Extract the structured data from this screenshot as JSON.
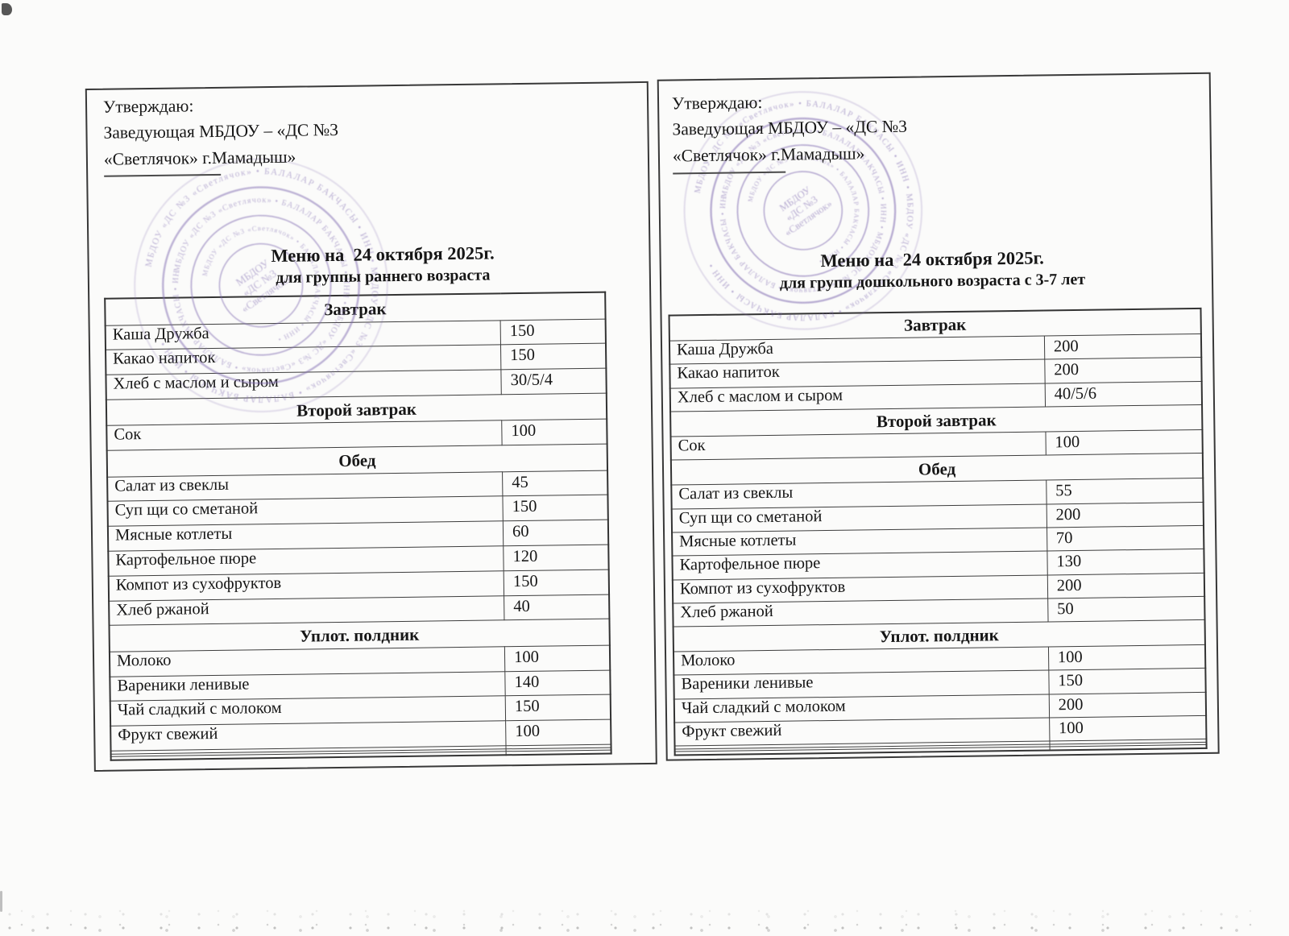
{
  "colors": {
    "stamp_ink": "#7f6ab0",
    "paper": "#fbfbfa",
    "table_line": "#3d3d3d"
  },
  "document": {
    "stamp": {
      "ring_text": "МБДОУ «ДС №3 «Светлячок» • БАЛАЛАР БАКЧАСЫ • ИНН • ",
      "center_lines": [
        "МБДОУ",
        "«ДС №3",
        "«Светлячок»"
      ]
    },
    "menus": [
      {
        "approval_lines": [
          "Утверждаю:",
          "Заведующая МБДОУ – «ДС №3",
          "«Светлячок» г.Мамадыш»"
        ],
        "title": "Меню на  24 октября 2025г.",
        "subtitle": "для группы раннего возраста",
        "sections": [
          {
            "header": "Завтрак",
            "items": [
              {
                "name": "Каша Дружба",
                "qty": "150"
              },
              {
                "name": "Какао напиток",
                "qty": "150"
              },
              {
                "name": "Хлеб с маслом и сыром",
                "qty": "30/5/4"
              }
            ]
          },
          {
            "header": "Второй завтрак",
            "items": [
              {
                "name": "Сок",
                "qty": "100"
              }
            ]
          },
          {
            "header": "Обед",
            "items": [
              {
                "name": "Салат из свеклы",
                "qty": "45"
              },
              {
                "name": "Суп щи со сметаной",
                "qty": "150"
              },
              {
                "name": "Мясные котлеты",
                "qty": "60"
              },
              {
                "name": "Картофельное пюре",
                "qty": "120"
              },
              {
                "name": "Компот из сухофруктов",
                "qty": "150"
              },
              {
                "name": "Хлеб ржаной",
                "qty": "40"
              }
            ]
          },
          {
            "header": "Уплот. полдник",
            "items": [
              {
                "name": "Молоко",
                "qty": "100"
              },
              {
                "name": "Вареники ленивые",
                "qty": "140"
              },
              {
                "name": "Чай сладкий с молоком",
                "qty": "150"
              },
              {
                "name": "Фрукт свежий",
                "qty": "100"
              },
              {
                "name": "",
                "qty": ""
              },
              {
                "name": "",
                "qty": ""
              },
              {
                "name": "",
                "qty": ""
              }
            ]
          }
        ]
      },
      {
        "approval_lines": [
          "Утверждаю:",
          "Заведующая МБДОУ – «ДС №3",
          "«Светлячок» г.Мамадыш»"
        ],
        "title": "Меню на  24 октября 2025г.",
        "subtitle": "для групп дошкольного возраста с 3-7 лет",
        "sections": [
          {
            "header": "Завтрак",
            "items": [
              {
                "name": "Каша Дружба",
                "qty": "200"
              },
              {
                "name": "Какао напиток",
                "qty": "200"
              },
              {
                "name": "Хлеб с маслом и сыром",
                "qty": "40/5/6"
              }
            ]
          },
          {
            "header": "Второй завтрак",
            "items": [
              {
                "name": "Сок",
                "qty": "100"
              }
            ]
          },
          {
            "header": "Обед",
            "items": [
              {
                "name": "Салат из свеклы",
                "qty": "55"
              },
              {
                "name": "Суп щи со сметаной",
                "qty": "200"
              },
              {
                "name": "Мясные котлеты",
                "qty": "70"
              },
              {
                "name": "Картофельное пюре",
                "qty": "130"
              },
              {
                "name": "Компот из сухофруктов",
                "qty": "200"
              },
              {
                "name": "Хлеб ржаной",
                "qty": "50"
              }
            ]
          },
          {
            "header": "Уплот. полдник",
            "items": [
              {
                "name": "Молоко",
                "qty": "100"
              },
              {
                "name": "Вареники ленивые",
                "qty": "150"
              },
              {
                "name": "Чай сладкий с молоком",
                "qty": "200"
              },
              {
                "name": "Фрукт свежий",
                "qty": "100"
              },
              {
                "name": "",
                "qty": ""
              },
              {
                "name": "",
                "qty": ""
              },
              {
                "name": "",
                "qty": ""
              }
            ]
          }
        ]
      }
    ]
  }
}
